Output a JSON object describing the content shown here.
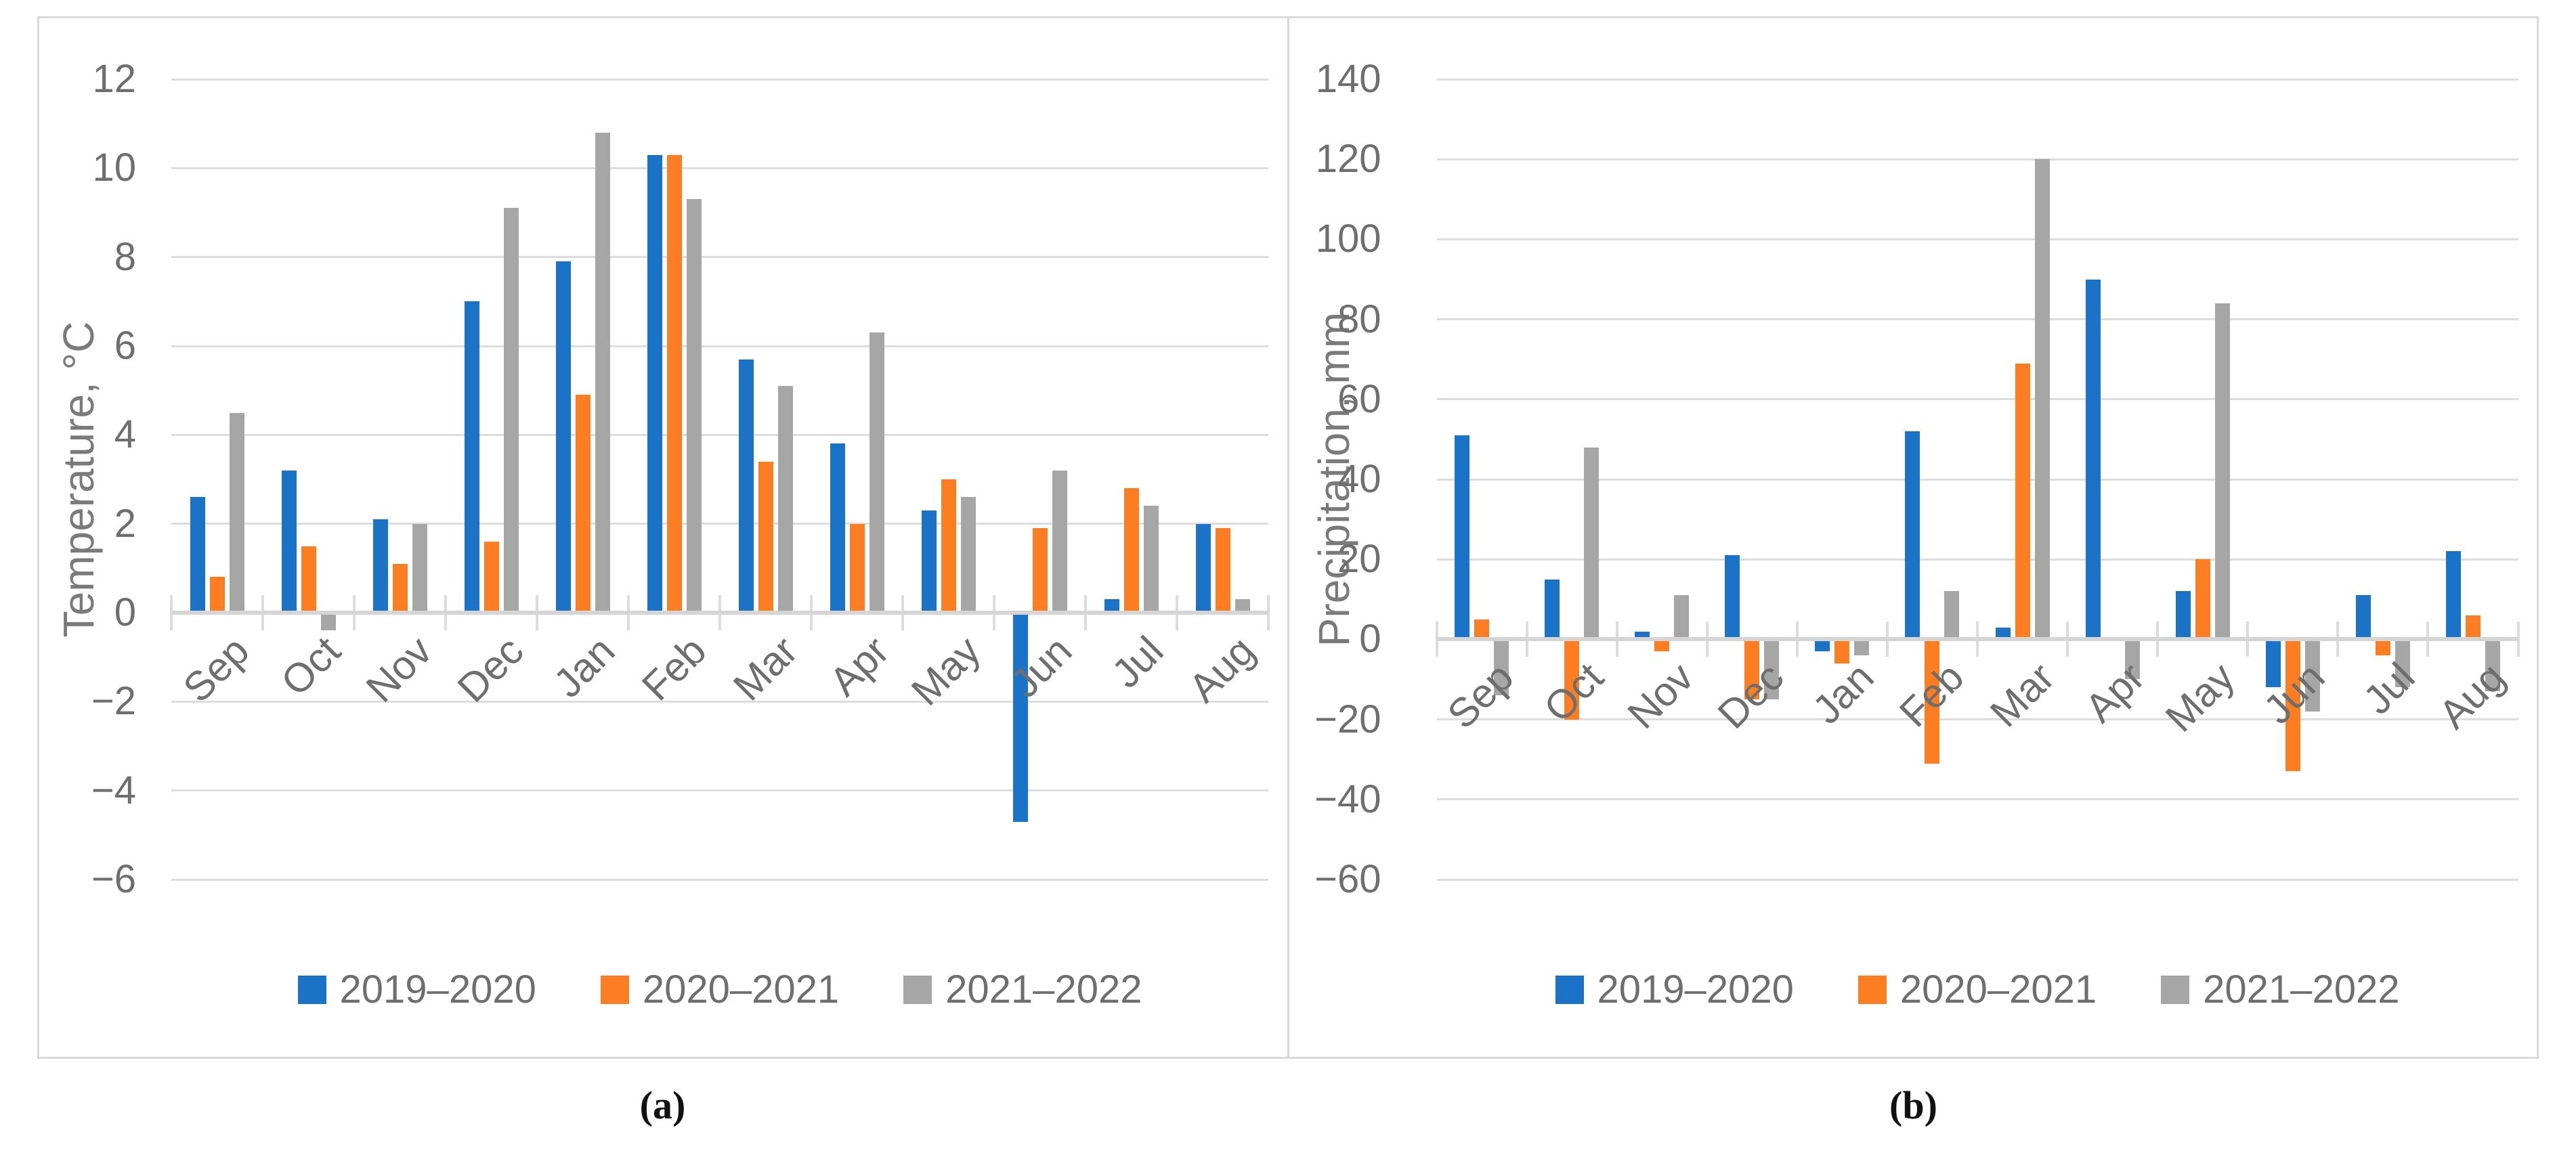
{
  "figure": {
    "description": "Two-panel monthly climate bar chart figure",
    "captions": {
      "a": "(a)",
      "b": "(b)"
    }
  },
  "colors": {
    "series1": "#1A73C7",
    "series2": "#FD7E22",
    "series3": "#A6A6A6",
    "gridline": "#DDDDDD",
    "axis_line": "#D5D5D5",
    "boundary_tick": "#DCDCDC",
    "tick_label": "#6E6E6E",
    "axis_title": "#7A7A7A",
    "caption": "#111111",
    "panel_border": "#D9D9D9",
    "background": "#FFFFFF"
  },
  "chart_data": [
    {
      "type": "bar",
      "panel": "a",
      "title": "",
      "xlabel": "",
      "ylabel": "Temperature, °C",
      "ylim": [
        -6,
        12
      ],
      "ytick_step": 2,
      "grid": true,
      "legend_position": "bottom",
      "categories": [
        "Sep",
        "Oct",
        "Nov",
        "Dec",
        "Jan",
        "Feb",
        "Mar",
        "Apr",
        "May",
        "Jun",
        "Jul",
        "Aug"
      ],
      "series": [
        {
          "name": "2019–2020",
          "color": "series1",
          "values": [
            2.6,
            3.2,
            2.1,
            7.0,
            7.9,
            10.3,
            5.7,
            3.8,
            2.3,
            -4.7,
            0.3,
            2.0
          ]
        },
        {
          "name": "2020–2021",
          "color": "series2",
          "values": [
            0.8,
            1.5,
            1.1,
            1.6,
            4.9,
            10.3,
            3.4,
            2.0,
            3.0,
            1.9,
            2.8,
            1.9
          ]
        },
        {
          "name": "2021–2022",
          "color": "series3",
          "values": [
            4.5,
            -0.4,
            2.0,
            9.1,
            10.8,
            9.3,
            5.1,
            6.3,
            2.6,
            3.2,
            2.4,
            0.3
          ]
        }
      ]
    },
    {
      "type": "bar",
      "panel": "b",
      "title": "",
      "xlabel": "",
      "ylabel": "Precipitation, mm",
      "ylim": [
        -60,
        140
      ],
      "ytick_step": 20,
      "grid": true,
      "legend_position": "bottom",
      "categories": [
        "Sep",
        "Oct",
        "Nov",
        "Dec",
        "Jan",
        "Feb",
        "Mar",
        "Apr",
        "May",
        "Jun",
        "Jul",
        "Aug"
      ],
      "series": [
        {
          "name": "2019–2020",
          "color": "series1",
          "values": [
            51,
            15,
            2,
            21,
            -3,
            52,
            3,
            90,
            12,
            -12,
            11,
            22
          ]
        },
        {
          "name": "2020–2021",
          "color": "series2",
          "values": [
            5,
            -20,
            -3,
            -15,
            -6,
            -31,
            69,
            0,
            20,
            -33,
            -4,
            6
          ]
        },
        {
          "name": "2021–2022",
          "color": "series3",
          "values": [
            -14,
            48,
            11,
            -15,
            -4,
            12,
            120,
            -10,
            84,
            -18,
            -12,
            -13
          ]
        }
      ]
    }
  ]
}
